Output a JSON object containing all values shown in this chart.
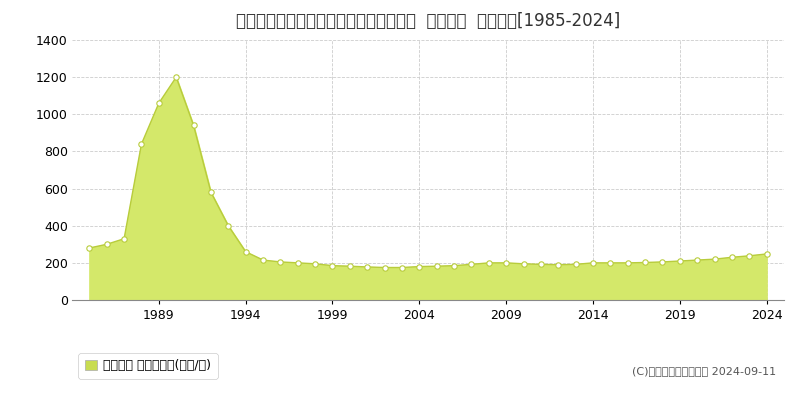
{
  "title": "埼玉県新座市東北２丁目３６番１０９外  地価公示  地価推移[1985-2024]",
  "years": [
    1985,
    1986,
    1987,
    1988,
    1989,
    1990,
    1991,
    1992,
    1993,
    1994,
    1995,
    1996,
    1997,
    1998,
    1999,
    2000,
    2001,
    2002,
    2003,
    2004,
    2005,
    2006,
    2007,
    2008,
    2009,
    2010,
    2011,
    2012,
    2013,
    2014,
    2015,
    2016,
    2017,
    2018,
    2019,
    2020,
    2021,
    2022,
    2023,
    2024
  ],
  "values": [
    280,
    300,
    330,
    840,
    1060,
    1200,
    940,
    580,
    400,
    260,
    215,
    205,
    200,
    195,
    185,
    182,
    178,
    175,
    175,
    180,
    182,
    185,
    192,
    200,
    200,
    195,
    192,
    190,
    192,
    200,
    200,
    200,
    202,
    205,
    210,
    215,
    220,
    230,
    238,
    248
  ],
  "fill_color": "#d4e86a",
  "line_color": "#b8cc3c",
  "marker_facecolor": "#ffffff",
  "marker_edgecolor": "#b8cc3c",
  "ylim": [
    0,
    1400
  ],
  "yticks": [
    0,
    200,
    400,
    600,
    800,
    1000,
    1200,
    1400
  ],
  "xticks": [
    1989,
    1994,
    1999,
    2004,
    2009,
    2014,
    2019,
    2024
  ],
  "xmin": 1984,
  "xmax": 2025,
  "bg_color": "#ffffff",
  "plot_bg_color": "#ffffff",
  "grid_color": "#cccccc",
  "legend_label": "地価公示 平均坪単価(万円/坪)",
  "legend_patch_color": "#c8dc50",
  "copyright_text": "(C)土地価格ドットコム 2024-09-11",
  "title_fontsize": 12,
  "axis_fontsize": 9,
  "legend_fontsize": 9,
  "copyright_fontsize": 8
}
